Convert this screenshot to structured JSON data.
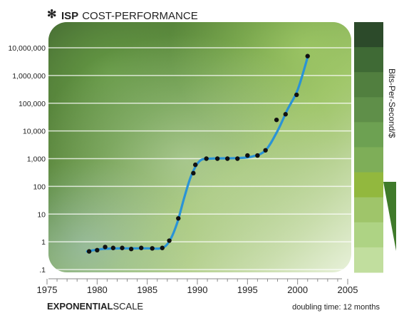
{
  "header": {
    "title_bold": "ISP",
    "title_rest": "COST-PERFORMANCE"
  },
  "footer": {
    "scale_bold": "EXPONENTIAL",
    "scale_rest": "SCALE",
    "note": "doubling time: 12 months"
  },
  "colors": {
    "curve": "#2a93d6",
    "points": "#111111",
    "title": "#222222",
    "legend_swatches": [
      "#2c4a2a",
      "#3f6a35",
      "#517f3f",
      "#5f8f49",
      "#6da152",
      "#7eae58",
      "#92b83e",
      "#9fc56a",
      "#aed384",
      "#c1de9e"
    ]
  },
  "chart_data": {
    "type": "scatter",
    "title": "ISP COST-PERFORMANCE",
    "xlabel": "",
    "ylabel": "Bits-Per-Second/$",
    "y_scale": "log",
    "grid": true,
    "xlim": [
      1975,
      2005
    ],
    "ylim": [
      0.1,
      10000000
    ],
    "x_ticks": [
      "1975",
      "1980",
      "1985",
      "1990",
      "1995",
      "2000",
      "2005"
    ],
    "y_ticks": [
      ".1",
      "1",
      "10",
      "100",
      "1,000",
      "10,000",
      "100,000",
      "1,000,000",
      "10,000,000"
    ],
    "series": [
      {
        "points": [
          {
            "x": 1979.2,
            "y": 0.45
          },
          {
            "x": 1980.0,
            "y": 0.5
          },
          {
            "x": 1980.8,
            "y": 0.65
          },
          {
            "x": 1981.6,
            "y": 0.6
          },
          {
            "x": 1982.5,
            "y": 0.6
          },
          {
            "x": 1983.4,
            "y": 0.55
          },
          {
            "x": 1984.4,
            "y": 0.6
          },
          {
            "x": 1985.5,
            "y": 0.58
          },
          {
            "x": 1986.5,
            "y": 0.6
          },
          {
            "x": 1987.2,
            "y": 1.1
          },
          {
            "x": 1988.1,
            "y": 7
          },
          {
            "x": 1989.6,
            "y": 300
          },
          {
            "x": 1989.8,
            "y": 600
          },
          {
            "x": 1990.9,
            "y": 1000
          },
          {
            "x": 1992.0,
            "y": 1000
          },
          {
            "x": 1993.0,
            "y": 1000
          },
          {
            "x": 1994.0,
            "y": 1000
          },
          {
            "x": 1995.0,
            "y": 1300
          },
          {
            "x": 1996.0,
            "y": 1300
          },
          {
            "x": 1996.8,
            "y": 2000
          },
          {
            "x": 1997.9,
            "y": 25000
          },
          {
            "x": 1998.8,
            "y": 40000
          },
          {
            "x": 1999.9,
            "y": 200000
          },
          {
            "x": 2001.0,
            "y": 5000000
          }
        ],
        "trend": [
          {
            "x": 1979.0,
            "y": 0.45
          },
          {
            "x": 1980.5,
            "y": 0.55
          },
          {
            "x": 1982.5,
            "y": 0.58
          },
          {
            "x": 1985.0,
            "y": 0.58
          },
          {
            "x": 1986.5,
            "y": 0.6
          },
          {
            "x": 1987.3,
            "y": 1.2
          },
          {
            "x": 1988.0,
            "y": 5
          },
          {
            "x": 1988.7,
            "y": 40
          },
          {
            "x": 1989.4,
            "y": 250
          },
          {
            "x": 1990.2,
            "y": 800
          },
          {
            "x": 1991.2,
            "y": 1000
          },
          {
            "x": 1994.0,
            "y": 1050
          },
          {
            "x": 1995.5,
            "y": 1200
          },
          {
            "x": 1996.8,
            "y": 2000
          },
          {
            "x": 1998.0,
            "y": 10000
          },
          {
            "x": 1999.0,
            "y": 60000
          },
          {
            "x": 2000.0,
            "y": 300000
          },
          {
            "x": 2001.0,
            "y": 4500000
          }
        ]
      }
    ]
  }
}
